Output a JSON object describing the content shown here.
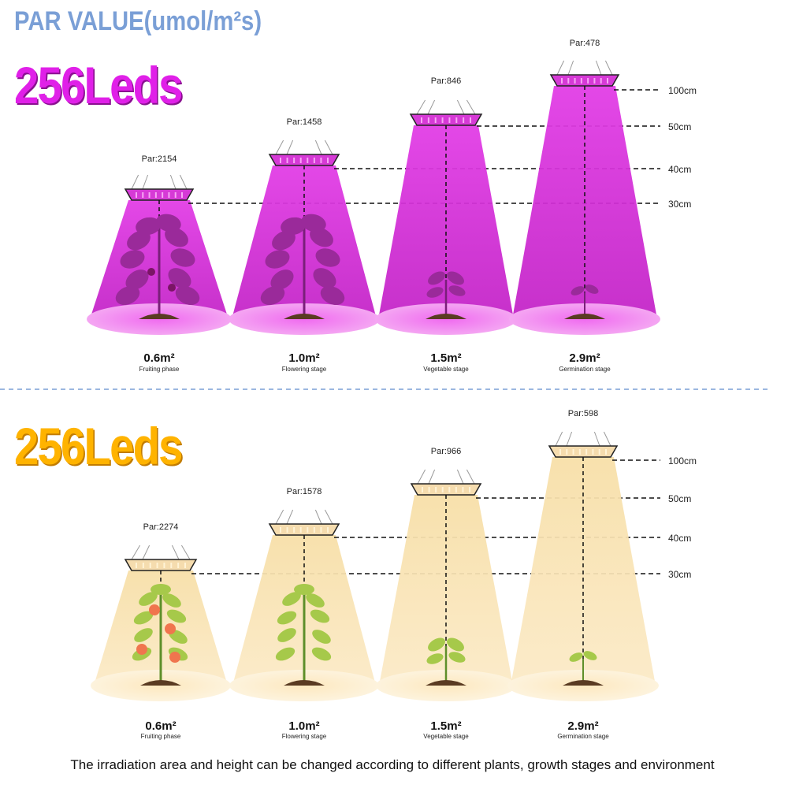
{
  "header": {
    "title": "PAR VALUE(umol/m²s)"
  },
  "divider_color": "#7a9fd6",
  "footer": {
    "text": "The irradiation area and height can be changed according to different plants, growth stages and environment"
  },
  "panels": [
    {
      "heading": "256Leds",
      "light_color": "purple",
      "heading_color": "#e020e8",
      "beam_color": "#cc22cc",
      "lights": [
        {
          "par_label": "Par:2154",
          "area": "0.6m²",
          "stage": "Fruiting phase",
          "height": "30cm",
          "plant": "fruiting-plant"
        },
        {
          "par_label": "Par:1458",
          "area": "1.0m²",
          "stage": "Flowering stage",
          "height": "40cm",
          "plant": "flowering-plant"
        },
        {
          "par_label": "Par:846",
          "area": "1.5m²",
          "stage": "Vegetable stage",
          "height": "50cm",
          "plant": "seedling-plant"
        },
        {
          "par_label": "Par:478",
          "area": "2.9m²",
          "stage": "Germination stage",
          "height": "100cm",
          "plant": "sprout-plant"
        }
      ]
    },
    {
      "heading": "256Leds",
      "light_color": "warm white",
      "heading_color": "#ffb300",
      "beam_color": "#f5d9a0",
      "lights": [
        {
          "par_label": "Par:2274",
          "area": "0.6m²",
          "stage": "Fruiting phase",
          "height": "30cm",
          "plant": "tomato-plant"
        },
        {
          "par_label": "Par:1578",
          "area": "1.0m²",
          "stage": "Flowering stage",
          "height": "40cm",
          "plant": "leafy-plant"
        },
        {
          "par_label": "Par:966",
          "area": "1.5m²",
          "stage": "Vegetable stage",
          "height": "50cm",
          "plant": "seedling-plant"
        },
        {
          "par_label": "Par:598",
          "area": "2.9m²",
          "stage": "Germination stage",
          "height": "100cm",
          "plant": "sprout-plant"
        }
      ]
    }
  ]
}
